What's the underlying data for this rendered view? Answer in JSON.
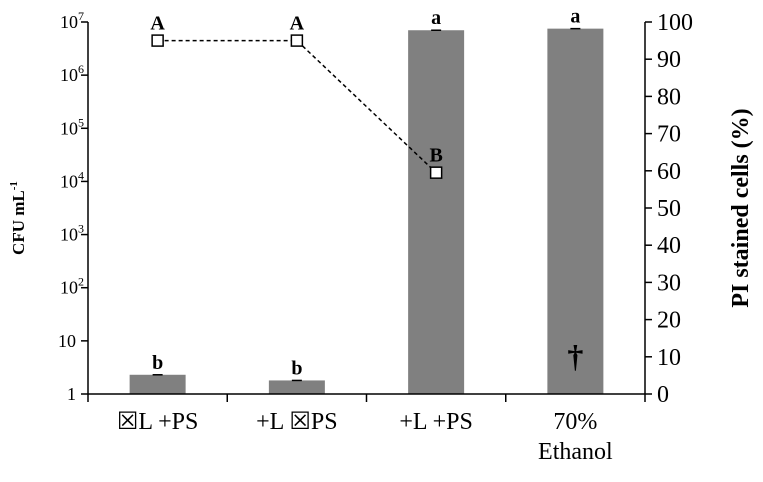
{
  "chart_data": {
    "type": "bar",
    "title": "",
    "categories": [
      {
        "lines": [
          "☒L +PS"
        ]
      },
      {
        "lines": [
          "+L ☒PS"
        ]
      },
      {
        "lines": [
          "+L +PS"
        ]
      },
      {
        "lines": [
          "70%",
          "Ethanol"
        ]
      }
    ],
    "left_axis": {
      "label": "CFU mL",
      "label_sup": "-1",
      "scale": "log",
      "ylim": [
        1,
        10000000
      ],
      "ticks": [
        {
          "value": 1,
          "base": "1",
          "exp": ""
        },
        {
          "value": 10,
          "base": "10",
          "exp": ""
        },
        {
          "value": 100,
          "base": "10",
          "exp": "2"
        },
        {
          "value": 1000,
          "base": "10",
          "exp": "3"
        },
        {
          "value": 10000,
          "base": "10",
          "exp": "4"
        },
        {
          "value": 100000,
          "base": "10",
          "exp": "5"
        },
        {
          "value": 1000000,
          "base": "10",
          "exp": "6"
        },
        {
          "value": 10000000,
          "base": "10",
          "exp": "7"
        }
      ]
    },
    "right_axis": {
      "label": "PI stained cells (%)",
      "scale": "linear",
      "ylim": [
        0,
        100
      ],
      "ticks": [
        "0",
        "10",
        "20",
        "30",
        "40",
        "50",
        "60",
        "70",
        "80",
        "90",
        "100"
      ]
    },
    "bars": {
      "axis": "left",
      "color": "#808080",
      "values": [
        2.3,
        1.8,
        7000000,
        7500000
      ],
      "labels": [
        "b",
        "b",
        "a",
        "a"
      ]
    },
    "line": {
      "axis": "right",
      "style": "dashed",
      "marker": "open-square",
      "points": [
        {
          "category_index": 0,
          "value": 95,
          "label": "A"
        },
        {
          "category_index": 1,
          "value": 95,
          "label": "A"
        },
        {
          "category_index": 2,
          "value": 59.5,
          "label": "B"
        }
      ]
    },
    "annotations": [
      {
        "category_index": 3,
        "text": "†",
        "value": 10
      }
    ],
    "grid": false
  }
}
